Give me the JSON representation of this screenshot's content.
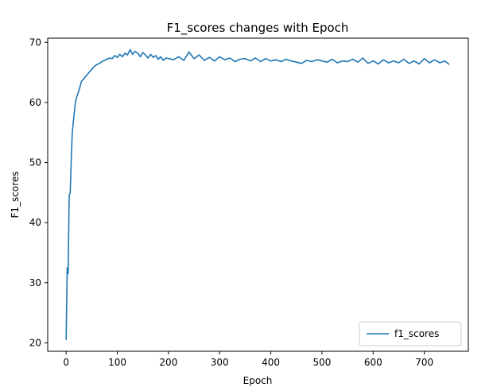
{
  "chart_data": {
    "type": "line",
    "title": "F1_scores changes with Epoch",
    "xlabel": "Epoch",
    "ylabel": "F1_scores",
    "xlim": [
      -36,
      786
    ],
    "ylim": [
      18.6,
      70.7
    ],
    "xticks": [
      0,
      100,
      200,
      300,
      400,
      500,
      600,
      700
    ],
    "yticks": [
      20,
      30,
      40,
      50,
      60,
      70
    ],
    "grid": false,
    "legend_position": "lower-right",
    "series": [
      {
        "name": "f1_scores",
        "color": "#1f77b4",
        "x": [
          0,
          2,
          4,
          6,
          8,
          10,
          12,
          15,
          18,
          21,
          25,
          30,
          35,
          40,
          45,
          50,
          55,
          60,
          65,
          70,
          75,
          80,
          85,
          90,
          95,
          100,
          105,
          110,
          115,
          120,
          125,
          130,
          135,
          140,
          145,
          150,
          155,
          160,
          165,
          170,
          175,
          180,
          185,
          190,
          195,
          200,
          210,
          220,
          230,
          240,
          250,
          260,
          270,
          280,
          290,
          300,
          310,
          320,
          330,
          340,
          350,
          360,
          370,
          380,
          390,
          400,
          410,
          420,
          430,
          440,
          450,
          460,
          470,
          480,
          490,
          500,
          510,
          520,
          530,
          540,
          550,
          560,
          570,
          580,
          590,
          600,
          610,
          620,
          630,
          640,
          650,
          660,
          670,
          680,
          690,
          700,
          710,
          720,
          730,
          740,
          749
        ],
        "values": [
          20.5,
          32.5,
          31.5,
          44.5,
          45.0,
          50.5,
          55.0,
          57.5,
          60.0,
          61.0,
          62.0,
          63.5,
          64.0,
          64.5,
          65.0,
          65.5,
          66.0,
          66.3,
          66.5,
          66.8,
          67.0,
          67.2,
          67.4,
          67.3,
          67.8,
          67.5,
          68.0,
          67.6,
          68.2,
          67.9,
          68.8,
          68.0,
          68.5,
          68.2,
          67.6,
          68.3,
          67.9,
          67.4,
          68.0,
          67.5,
          67.8,
          67.2,
          67.6,
          67.0,
          67.4,
          67.3,
          67.1,
          67.6,
          67.0,
          68.4,
          67.3,
          67.9,
          67.0,
          67.5,
          66.9,
          67.6,
          67.1,
          67.4,
          66.8,
          67.2,
          67.3,
          66.9,
          67.4,
          66.8,
          67.3,
          66.9,
          67.1,
          66.8,
          67.2,
          66.9,
          66.7,
          66.5,
          67.0,
          66.8,
          67.1,
          66.9,
          66.7,
          67.2,
          66.6,
          66.9,
          66.8,
          67.2,
          66.7,
          67.4,
          66.5,
          66.9,
          66.4,
          67.1,
          66.6,
          66.9,
          66.6,
          67.2,
          66.5,
          66.9,
          66.4,
          67.3,
          66.6,
          67.1,
          66.6,
          66.9,
          66.3
        ]
      }
    ]
  }
}
